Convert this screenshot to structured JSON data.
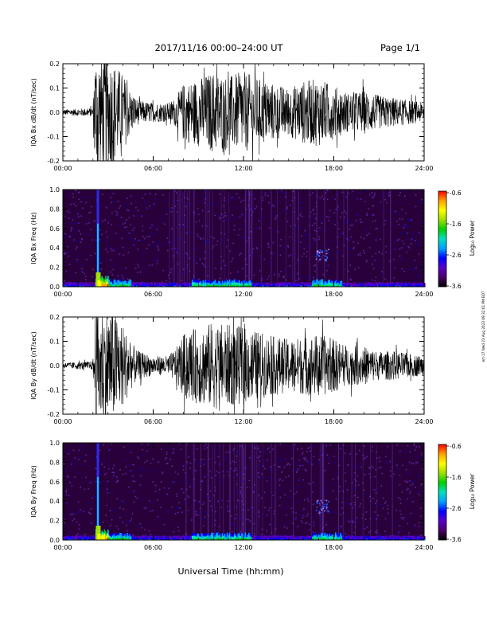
{
  "header": {
    "title": "2017/11/16  00:00–24:00 UT",
    "page_label": "Page 1/1"
  },
  "footer": {
    "xlabel": "Universal Time (hh:mm)",
    "side_stamp": "ert-17 Wed 23 Aug 2023 09:32:01 PM EDT"
  },
  "colors": {
    "waveform": "#000000",
    "spectrogram_background": "#2a003a",
    "spectrogram_speckle": "#6a2ab0",
    "colorbar": [
      "#000000",
      "#4a006a",
      "#5a00c8",
      "#0000ff",
      "#00a0ff",
      "#00e0c0",
      "#00d000",
      "#a0e000",
      "#ffff00",
      "#ffa000",
      "#ff0000"
    ]
  },
  "chart_data": [
    {
      "type": "line",
      "name": "bx-waveform",
      "ylabel": "IQA Bx dB/dt (nT/sec)",
      "xlim": [
        "00:00",
        "24:00"
      ],
      "xticks": [
        "00:00",
        "06:00",
        "12:00",
        "18:00",
        "24:00"
      ],
      "ylim": [
        -0.2,
        0.2
      ],
      "yticks": [
        "-0.2",
        "-0.1",
        "0.0",
        "0.1",
        "0.2"
      ],
      "envelope": {
        "hours": [
          0,
          1,
          2,
          2.1,
          2.4,
          3,
          3.5,
          4,
          4.5,
          5,
          6,
          7,
          7.5,
          8,
          9,
          10,
          11,
          12,
          13,
          14,
          15,
          16,
          17,
          18,
          19,
          20,
          21,
          22,
          23,
          24
        ],
        "amplitude": [
          0.012,
          0.015,
          0.018,
          0.25,
          0.25,
          0.25,
          0.2,
          0.16,
          0.09,
          0.05,
          0.04,
          0.04,
          0.06,
          0.12,
          0.14,
          0.17,
          0.15,
          0.17,
          0.14,
          0.12,
          0.1,
          0.13,
          0.14,
          0.11,
          0.08,
          0.09,
          0.07,
          0.06,
          0.05,
          0.04
        ]
      }
    },
    {
      "type": "heatmap",
      "name": "bx-spectrogram",
      "ylabel": "IQA Bx Freq (Hz)",
      "xlim": [
        "00:00",
        "24:00"
      ],
      "xticks": [
        "00:00",
        "06:00",
        "12:00",
        "18:00",
        "24:00"
      ],
      "ylim": [
        0.0,
        1.0
      ],
      "yticks": [
        "0.0",
        "0.2",
        "0.4",
        "0.6",
        "0.8",
        "1.0"
      ],
      "colorbar": {
        "label": "Log₁₀ Power",
        "range": [
          -3.6,
          -0.6
        ],
        "ticks": [
          "-0.6",
          "-1.6",
          "-2.6",
          "-3.6"
        ]
      },
      "features": [
        {
          "hour": 2.3,
          "description": "broadband spike",
          "fmax": 1.0
        },
        {
          "hour": 17.2,
          "freq": 0.33,
          "description": "narrowband patch"
        }
      ],
      "lowfreq_enhancement_hours": [
        [
          2.2,
          4.5
        ],
        [
          8.5,
          12.5
        ],
        [
          16.5,
          18.5
        ]
      ]
    },
    {
      "type": "line",
      "name": "by-waveform",
      "ylabel": "IQA By dB/dt (nT/sec)",
      "xlim": [
        "00:00",
        "24:00"
      ],
      "xticks": [
        "00:00",
        "06:00",
        "12:00",
        "18:00",
        "24:00"
      ],
      "ylim": [
        -0.2,
        0.2
      ],
      "yticks": [
        "-0.2",
        "-0.1",
        "0.0",
        "0.1",
        "0.2"
      ],
      "envelope": {
        "hours": [
          0,
          1,
          2,
          2.1,
          2.4,
          3,
          3.5,
          4,
          4.5,
          5,
          6,
          7,
          7.5,
          8,
          9,
          10,
          11,
          12,
          13,
          14,
          15,
          16,
          17,
          18,
          19,
          20,
          21,
          22,
          23,
          24
        ],
        "amplitude": [
          0.012,
          0.015,
          0.018,
          0.25,
          0.25,
          0.25,
          0.22,
          0.17,
          0.1,
          0.06,
          0.04,
          0.04,
          0.07,
          0.13,
          0.16,
          0.18,
          0.17,
          0.16,
          0.14,
          0.12,
          0.11,
          0.12,
          0.13,
          0.11,
          0.08,
          0.08,
          0.06,
          0.06,
          0.05,
          0.04
        ]
      }
    },
    {
      "type": "heatmap",
      "name": "by-spectrogram",
      "ylabel": "IQA By Freq (Hz)",
      "xlim": [
        "00:00",
        "24:00"
      ],
      "xticks": [
        "00:00",
        "06:00",
        "12:00",
        "18:00",
        "24:00"
      ],
      "ylim": [
        0.0,
        1.0
      ],
      "yticks": [
        "0.0",
        "0.2",
        "0.4",
        "0.6",
        "0.8",
        "1.0"
      ],
      "colorbar": {
        "label": "Log₁₀ Power",
        "range": [
          -3.6,
          -0.6
        ],
        "ticks": [
          "-0.6",
          "-1.6",
          "-2.6",
          "-3.6"
        ]
      },
      "features": [
        {
          "hour": 2.3,
          "description": "broadband spike",
          "fmax": 1.0
        },
        {
          "hour": 17.2,
          "freq": 0.35,
          "description": "narrowband patch"
        }
      ],
      "lowfreq_enhancement_hours": [
        [
          2.2,
          4.5
        ],
        [
          8.5,
          12.5
        ],
        [
          16.5,
          18.5
        ]
      ]
    }
  ]
}
